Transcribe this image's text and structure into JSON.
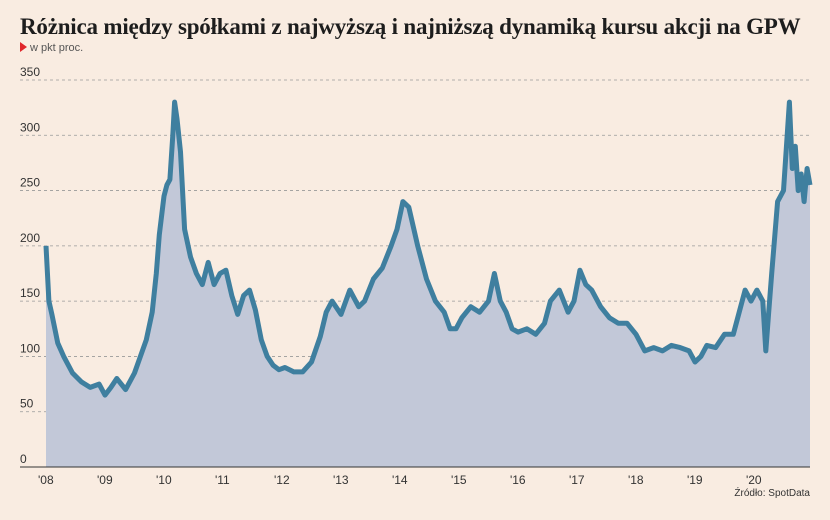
{
  "title": "Różnica między spółkami z najwyższą i najniższą dynamiką kursu akcji na GPW",
  "subtitle": "w pkt proc.",
  "source": "Źródło: SpotData",
  "colors": {
    "background": "#f9ece1",
    "line": "#3f7f9f",
    "area": "#c2c8d8",
    "grid": "#999999",
    "marker": "#e0262a"
  },
  "chart_data": {
    "type": "area",
    "title": "Różnica między spółkami z najwyższą i najniższą dynamiką kursu akcji na GPW",
    "ylabel": "w pkt proc.",
    "xlabel": "",
    "ylim": [
      0,
      350
    ],
    "xlim": [
      2008.0,
      2020.95
    ],
    "y_ticks": [
      "0",
      "50",
      "100",
      "150",
      "200",
      "250",
      "300",
      "350"
    ],
    "x_ticks": [
      "'08",
      "'09",
      "'10",
      "'11",
      "'12",
      "'13",
      "'14",
      "'15",
      "'16",
      "'17",
      "'18",
      "'19",
      "'20"
    ],
    "grid": "horizontal dashed",
    "legend": "none",
    "series": [
      {
        "x": [
          2008.0,
          2008.05,
          2008.1,
          2008.2,
          2008.3,
          2008.45,
          2008.6,
          2008.75,
          2008.9,
          2009.0,
          2009.1,
          2009.2,
          2009.35,
          2009.5,
          2009.6,
          2009.7,
          2009.8,
          2009.87,
          2009.92,
          2010.0,
          2010.05,
          2010.1,
          2010.15,
          2010.18,
          2010.22,
          2010.28,
          2010.35,
          2010.45,
          2010.55,
          2010.65,
          2010.75,
          2010.85,
          2010.95,
          2011.05,
          2011.15,
          2011.25,
          2011.35,
          2011.45,
          2011.55,
          2011.65,
          2011.75,
          2011.85,
          2011.95,
          2012.05,
          2012.2,
          2012.35,
          2012.5,
          2012.65,
          2012.75,
          2012.85,
          2013.0,
          2013.15,
          2013.3,
          2013.4,
          2013.55,
          2013.7,
          2013.85,
          2013.95,
          2014.05,
          2014.15,
          2014.3,
          2014.45,
          2014.6,
          2014.75,
          2014.85,
          2014.95,
          2015.05,
          2015.2,
          2015.35,
          2015.5,
          2015.6,
          2015.7,
          2015.8,
          2015.9,
          2016.0,
          2016.15,
          2016.3,
          2016.45,
          2016.55,
          2016.7,
          2016.85,
          2016.95,
          2017.05,
          2017.15,
          2017.25,
          2017.4,
          2017.55,
          2017.7,
          2017.85,
          2018.0,
          2018.15,
          2018.3,
          2018.45,
          2018.6,
          2018.75,
          2018.9,
          2019.0,
          2019.1,
          2019.2,
          2019.35,
          2019.5,
          2019.65,
          2019.75,
          2019.85,
          2019.95,
          2020.05,
          2020.15,
          2020.2,
          2020.25,
          2020.3,
          2020.4,
          2020.5,
          2020.6,
          2020.65,
          2020.7,
          2020.75,
          2020.8,
          2020.85,
          2020.9,
          2020.95
        ],
        "values": [
          200,
          150,
          138,
          112,
          100,
          85,
          77,
          72,
          75,
          65,
          72,
          80,
          70,
          85,
          100,
          115,
          140,
          175,
          210,
          245,
          255,
          260,
          300,
          330,
          315,
          285,
          215,
          190,
          175,
          165,
          185,
          165,
          175,
          178,
          155,
          138,
          155,
          160,
          142,
          115,
          100,
          92,
          88,
          90,
          86,
          86,
          95,
          118,
          140,
          150,
          138,
          160,
          145,
          150,
          170,
          180,
          200,
          215,
          240,
          235,
          200,
          170,
          150,
          140,
          125,
          125,
          135,
          145,
          140,
          150,
          175,
          150,
          140,
          125,
          122,
          125,
          120,
          130,
          150,
          160,
          140,
          150,
          178,
          165,
          160,
          145,
          135,
          130,
          130,
          120,
          105,
          108,
          105,
          110,
          108,
          105,
          95,
          100,
          110,
          108,
          120,
          120,
          140,
          160,
          150,
          160,
          150,
          105,
          140,
          175,
          240,
          250,
          330,
          270,
          290,
          250,
          265,
          240,
          270,
          255
        ]
      }
    ]
  }
}
